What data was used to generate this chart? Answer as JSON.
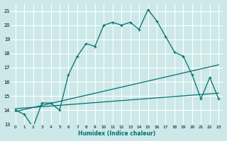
{
  "xlabel": "Humidex (Indice chaleur)",
  "bg_color": "#cce8e8",
  "grid_color": "#ffffff",
  "line_color": "#007070",
  "xlim": [
    -0.5,
    23.5
  ],
  "ylim": [
    13,
    21.5
  ],
  "yticks": [
    13,
    14,
    15,
    16,
    17,
    18,
    19,
    20,
    21
  ],
  "xticks": [
    0,
    1,
    2,
    3,
    4,
    5,
    6,
    7,
    8,
    9,
    10,
    11,
    12,
    13,
    14,
    15,
    16,
    17,
    18,
    19,
    20,
    21,
    22,
    23
  ],
  "line1_x": [
    0,
    1,
    2,
    3,
    4,
    5,
    6,
    7,
    8,
    9,
    10,
    11,
    12,
    13,
    14,
    15,
    16,
    17,
    18,
    19,
    20,
    21,
    22,
    23
  ],
  "line1_y": [
    14.0,
    13.7,
    12.8,
    14.5,
    14.5,
    14.0,
    16.5,
    17.8,
    18.7,
    18.5,
    20.0,
    20.2,
    20.0,
    20.2,
    19.7,
    21.1,
    20.3,
    19.2,
    18.1,
    17.8,
    16.5,
    14.8,
    16.3,
    14.8
  ],
  "line2_x": [
    0,
    23
  ],
  "line2_y": [
    13.9,
    17.2
  ],
  "line3_x": [
    0,
    23
  ],
  "line3_y": [
    14.1,
    15.2
  ],
  "marker": "+"
}
